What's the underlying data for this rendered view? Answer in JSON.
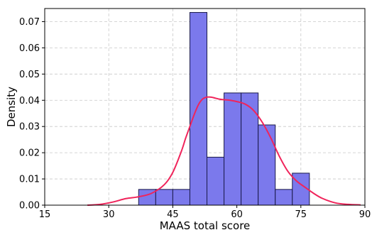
{
  "chart_data": {
    "type": "bar",
    "title": "",
    "xlabel": "MAAS total score",
    "ylabel": "Density",
    "xlim": [
      15,
      90
    ],
    "ylim": [
      0,
      0.075
    ],
    "xticks": [
      15,
      30,
      45,
      60,
      75,
      90
    ],
    "yticks": [
      0.0,
      0.01,
      0.02,
      0.03,
      0.04,
      0.05,
      0.06,
      0.07
    ],
    "grid": true,
    "histogram_bins": [
      {
        "x0": 37.0,
        "x1": 41.0,
        "density": 0.006
      },
      {
        "x0": 41.0,
        "x1": 45.0,
        "density": 0.006
      },
      {
        "x0": 45.0,
        "x1": 49.0,
        "density": 0.006
      },
      {
        "x0": 49.0,
        "x1": 53.0,
        "density": 0.0735
      },
      {
        "x0": 53.0,
        "x1": 57.0,
        "density": 0.0183
      },
      {
        "x0": 57.0,
        "x1": 61.0,
        "density": 0.0428
      },
      {
        "x0": 61.0,
        "x1": 65.0,
        "density": 0.0428
      },
      {
        "x0": 65.0,
        "x1": 69.0,
        "density": 0.0306
      },
      {
        "x0": 69.0,
        "x1": 73.0,
        "density": 0.006
      },
      {
        "x0": 73.0,
        "x1": 77.0,
        "density": 0.0122
      }
    ],
    "kde_curve": {
      "x": [
        25,
        28,
        31,
        34,
        37,
        40,
        43,
        45,
        47,
        48,
        49,
        50,
        51,
        52,
        53,
        54,
        55,
        56,
        57,
        58,
        60,
        62,
        64,
        66,
        68,
        70,
        72,
        74,
        76,
        78,
        80,
        83,
        86,
        89
      ],
      "y": [
        0.0,
        0.0003,
        0.0012,
        0.0025,
        0.0032,
        0.0045,
        0.0078,
        0.0125,
        0.0205,
        0.0255,
        0.03,
        0.0345,
        0.0383,
        0.0405,
        0.0412,
        0.0412,
        0.0408,
        0.0404,
        0.0402,
        0.0401,
        0.0395,
        0.0385,
        0.036,
        0.0315,
        0.0255,
        0.0185,
        0.0128,
        0.0092,
        0.0068,
        0.0045,
        0.0026,
        0.0009,
        0.0003,
        0.0001
      ]
    },
    "colors": {
      "bar_fill": "#7b79ec",
      "bar_edge": "#1a1a4a",
      "kde_line": "#f0245b",
      "grid": "#c8c8c8"
    }
  }
}
